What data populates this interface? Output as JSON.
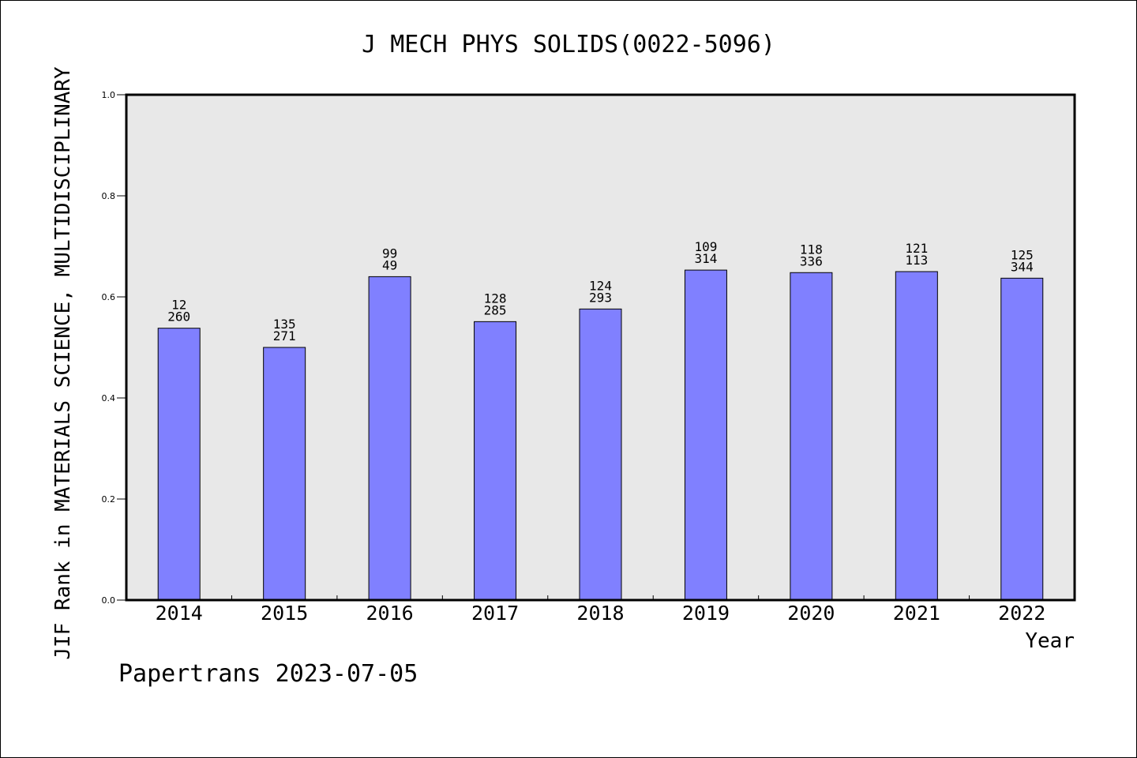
{
  "chart_data": {
    "type": "bar",
    "title": "J MECH PHYS SOLIDS(0022-5096)",
    "xlabel": "Year",
    "ylabel": "JIF Rank in MATERIALS SCIENCE, MULTIDISCIPLINARY",
    "ylim": [
      0,
      1.0
    ],
    "yticks": [
      "0.0",
      "0.2",
      "0.4",
      "0.6",
      "0.8",
      "1.0"
    ],
    "categories": [
      "2014",
      "2015",
      "2016",
      "2017",
      "2018",
      "2019",
      "2020",
      "2021",
      "2022"
    ],
    "values": [
      0.538,
      0.5,
      0.64,
      0.551,
      0.576,
      0.653,
      0.648,
      0.65,
      0.637
    ],
    "label_top": [
      "12",
      "135",
      "99",
      "128",
      "124",
      "109",
      "118",
      "121",
      "125"
    ],
    "label_bottom": [
      "260",
      "271",
      "49",
      "285",
      "293",
      "314",
      "336",
      "113",
      "344"
    ],
    "bar_color": "#8080ff",
    "plot_background": "#e8e8e8",
    "grid": false,
    "footer": "Papertrans 2023-07-05"
  }
}
